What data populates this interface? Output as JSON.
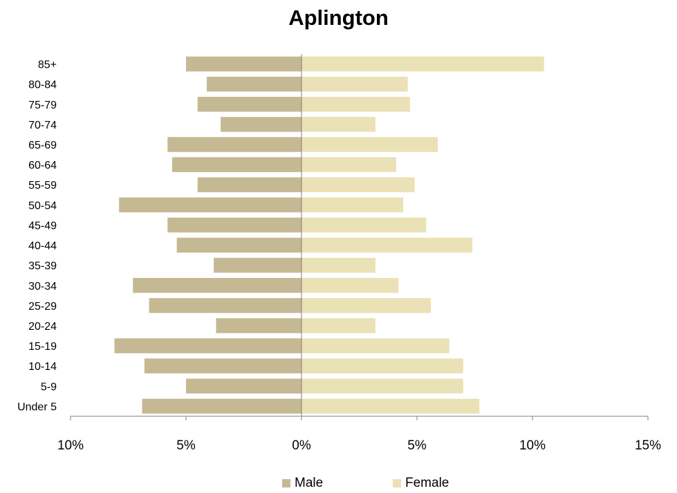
{
  "chart_data": {
    "type": "bar",
    "orientation": "horizontal",
    "title": "Aplington",
    "xlabel": "",
    "ylabel": "",
    "categories": [
      "Under 5",
      "5-9",
      "10-14",
      "15-19",
      "20-24",
      "25-29",
      "30-34",
      "35-39",
      "40-44",
      "45-49",
      "50-54",
      "55-59",
      "60-64",
      "65-69",
      "70-74",
      "75-79",
      "80-84",
      "85+"
    ],
    "series": [
      {
        "name": "Male",
        "color": "#c5b994",
        "values": [
          6.9,
          5.0,
          6.8,
          8.1,
          3.7,
          6.6,
          7.3,
          3.8,
          5.4,
          5.8,
          7.9,
          4.5,
          5.6,
          5.8,
          3.5,
          4.5,
          4.1,
          5.0
        ]
      },
      {
        "name": "Female",
        "color": "#ebe1b6",
        "values": [
          7.7,
          7.0,
          7.0,
          6.4,
          3.2,
          5.6,
          4.2,
          3.2,
          7.4,
          5.4,
          4.4,
          4.9,
          4.1,
          5.9,
          3.2,
          4.7,
          4.6,
          10.5
        ]
      }
    ],
    "xlim": [
      -10,
      15
    ],
    "x_ticks": [
      -10,
      -5,
      0,
      5,
      10,
      15
    ],
    "x_tick_labels": [
      "10%",
      "5%",
      "0%",
      "5%",
      "10%",
      "15%"
    ],
    "grid": false,
    "legend_position": "bottom"
  }
}
